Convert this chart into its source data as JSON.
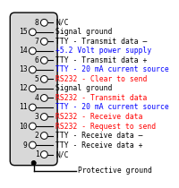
{
  "bg_color": "#ffffff",
  "rows": [
    {
      "pin": "8",
      "label": "N/C",
      "color": "#000000",
      "side": "right"
    },
    {
      "pin": "15",
      "label": "Signal ground",
      "color": "#000000",
      "side": "left"
    },
    {
      "pin": "7",
      "label": "TTY - Transmit data –",
      "color": "#000000",
      "side": "right"
    },
    {
      "pin": "14",
      "label": "+5.2 Volt power supply",
      "color": "#0000ff",
      "side": "left"
    },
    {
      "pin": "6",
      "label": "TTY - Transmit data +",
      "color": "#000000",
      "side": "right"
    },
    {
      "pin": "13",
      "label": "TTY - 20 mA current source",
      "color": "#0000ff",
      "side": "left"
    },
    {
      "pin": "5",
      "label": "RS232 - Clear to send",
      "color": "#ff0000",
      "side": "right"
    },
    {
      "pin": "12",
      "label": "Signal ground",
      "color": "#000000",
      "side": "left"
    },
    {
      "pin": "4",
      "label": "RS232 - Transmit data",
      "color": "#ff0000",
      "side": "right"
    },
    {
      "pin": "11",
      "label": "TTY - 20 mA current source",
      "color": "#0000ff",
      "side": "left"
    },
    {
      "pin": "3",
      "label": "RS232 - Receive data",
      "color": "#ff0000",
      "side": "right"
    },
    {
      "pin": "10",
      "label": "RS232 - Request to send",
      "color": "#ff0000",
      "side": "left"
    },
    {
      "pin": "2",
      "label": "TTY - Receive data –",
      "color": "#000000",
      "side": "right"
    },
    {
      "pin": "9",
      "label": "TTY - Receive data +",
      "color": "#000000",
      "side": "left"
    },
    {
      "pin": "1",
      "label": "N/C",
      "color": "#000000",
      "side": "right"
    }
  ],
  "footer_label": "Protective ground",
  "footer_color": "#000000",
  "body_facecolor": "#d8d8d8",
  "body_edgecolor": "#000000",
  "pin_facecolor": "#ffffff",
  "pin_edgecolor": "#000000"
}
